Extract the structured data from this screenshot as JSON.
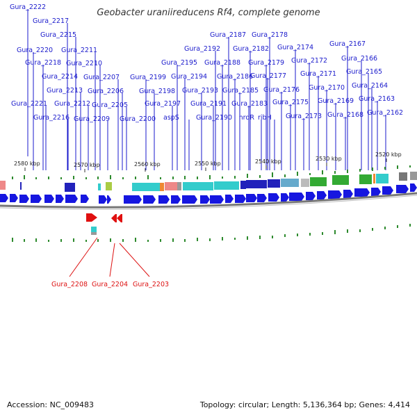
{
  "title": "Geobacter uraniireducens Rf4, complete genome",
  "footer": {
    "accession": "Accession: NC_009483",
    "info": "Topology: circular; Length: 5,136,364 bp; Genes: 4,414"
  },
  "scale_ticks": [
    "2580 kbp",
    "2570 kbp",
    "2560 kbp",
    "2550 kbp",
    "2540 kbp",
    "2530 kbp",
    "2520 kbp"
  ],
  "colors": {
    "forward_gene": "#1616e0",
    "reverse_gene": "#e01010",
    "label_forward": "#1a1acc",
    "label_reverse": "#dd1111",
    "backbone": "#777777",
    "gc_tick": "#2d8a2d",
    "cog_cyan": "#33cccc",
    "cog_blue": "#2222bb",
    "cog_green": "#33aa33",
    "cog_salmon": "#ee8888",
    "cog_orange": "#ee8833",
    "cog_gray": "#999999"
  },
  "forward_gene_labels": [
    "Gura_2222",
    "Gura_2217",
    "Gura_2215",
    "Gura_2220",
    "Gura_2211",
    "Gura_2218",
    "Gura_2210",
    "Gura_2214",
    "Gura_2207",
    "Gura_2213",
    "Gura_2206",
    "Gura_2221",
    "Gura_2212",
    "Gura_2205",
    "Gura_2216",
    "Gura_2209",
    "Gura_2199",
    "Gura_2198",
    "Gura_2200",
    "Gura_2197",
    "Gura_2195",
    "Gura_2194",
    "aspS",
    "Gura_2192",
    "Gura_2193",
    "Gura_2191",
    "Gura_2190",
    "Gura_2187",
    "Gura_2188",
    "Gura_2186",
    "Gura_2182",
    "Gura_2185",
    "Gura_2183",
    "nrdR",
    "Gura_2178",
    "Gura_2179",
    "Gura_2177",
    "Gura_2176",
    "Gura_2175",
    "ribH",
    "Gura_2174",
    "Gura_2172",
    "Gura_2171",
    "Gura_2173",
    "Gura_2170",
    "Gura_2169",
    "Gura_2168",
    "Gura_2167",
    "Gura_2166",
    "Gura_2165",
    "Gura_2164",
    "Gura_2163",
    "Gura_2162"
  ],
  "reverse_gene_labels": [
    "Gura_2208",
    "Gura_2204",
    "Gura_2203"
  ]
}
